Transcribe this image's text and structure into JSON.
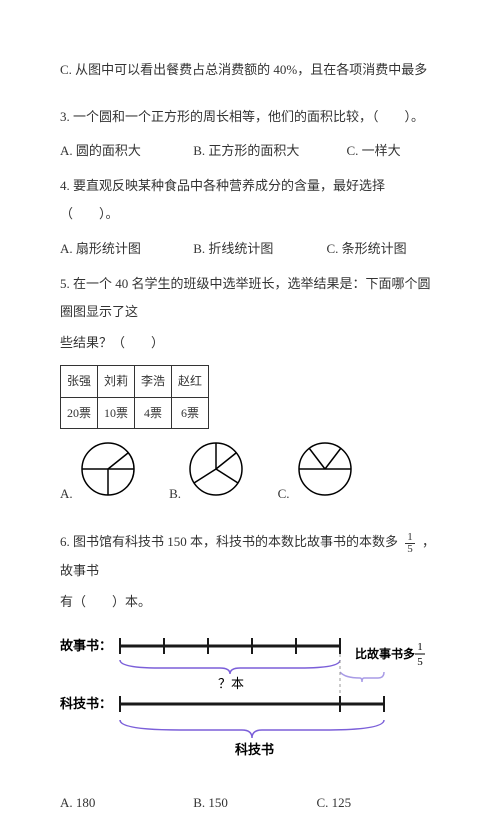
{
  "q2c": "C. 从图中可以看出餐费占总消费额的 40%，且在各项消费中最多",
  "q3": {
    "text": "3. 一个圆和一个正方形的周长相等，他们的面积比较，（　　）。",
    "a": "A. 圆的面积大",
    "b": "B. 正方形的面积大",
    "c": "C. 一样大",
    "w_a": 130,
    "w_b": 150,
    "w_c": 80
  },
  "q4": {
    "text": "4. 要直观反映某种食品中各种营养成分的含量，最好选择（　　）。",
    "a": "A. 扇形统计图",
    "b": "B. 折线统计图",
    "c": "C. 条形统计图",
    "w_a": 130,
    "w_b": 130,
    "w_c": 100
  },
  "q5": {
    "text1": "5. 在一个 40 名学生的班级中选举班长，选举结果是：下面哪个圆圈图显示了这",
    "text2": "些结果？（　　）",
    "table": {
      "names": [
        "张强",
        "刘莉",
        "李浩",
        "赵红"
      ],
      "votes": [
        "20票",
        "10票",
        "4票",
        "6票"
      ]
    },
    "labels": [
      "A.",
      "B.",
      "C."
    ],
    "pie_radius": 26,
    "stroke": "#000000",
    "fill": "#ffffff"
  },
  "q6": {
    "text1": "6. 图书馆有科技书 150 本，科技书的本数比故事书的本数多",
    "frac_n": "1",
    "frac_d": "5",
    "text2": "，故事书",
    "text3": "有（　　）本。",
    "diagram": {
      "label_story": "故事书：",
      "label_tech": "科技书：",
      "q_text": "？本",
      "compare_text": "比故事书多",
      "bottom_text": "科技书",
      "bar_color": "#1a1a1a",
      "brace_color": "#7b5fd9",
      "brace2_color": "#a89be6",
      "story_segments": 5,
      "tech_segments": 6
    },
    "a": "A. 180",
    "b": "B. 150",
    "c": "C. 125",
    "w_a": 130,
    "w_b": 120,
    "w_c": 80
  }
}
